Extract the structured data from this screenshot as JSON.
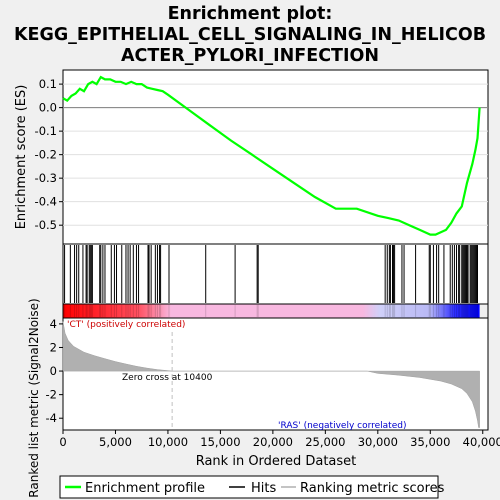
{
  "chart_data": {
    "type": "line",
    "title_lines": [
      "Enrichment plot:",
      "KEGG_EPITHELIAL_CELL_SIGNALING_IN_HELICOB",
      "ACTER_PYLORI_INFECTION"
    ],
    "es_panel": {
      "ylabel": "Enrichment score (ES)",
      "ylim": [
        -0.58,
        0.16
      ],
      "yticks": [
        0.1,
        0.0,
        -0.1,
        -0.2,
        -0.3,
        -0.4,
        -0.5
      ],
      "ytick_labels": [
        "0.1",
        "0.0",
        "-0.1",
        "-0.2",
        "-0.3",
        "-0.4",
        "-0.5"
      ],
      "curve_x": [
        0,
        400,
        800,
        1200,
        1600,
        2000,
        2400,
        2800,
        3200,
        3600,
        4000,
        4500,
        5000,
        5500,
        6000,
        6500,
        7000,
        7500,
        8000,
        8500,
        9000,
        9500,
        10000,
        12000,
        14000,
        16000,
        18000,
        20000,
        22000,
        24000,
        26000,
        28000,
        30000,
        31000,
        32000,
        33000,
        34000,
        35000,
        35500,
        36000,
        36500,
        37000,
        37500,
        38000,
        38500,
        39000,
        39300,
        39500,
        39700
      ],
      "curve_y": [
        0.04,
        0.03,
        0.05,
        0.06,
        0.08,
        0.07,
        0.1,
        0.11,
        0.1,
        0.13,
        0.12,
        0.12,
        0.11,
        0.11,
        0.1,
        0.11,
        0.1,
        0.1,
        0.085,
        0.08,
        0.075,
        0.07,
        0.055,
        -0.01,
        -0.075,
        -0.14,
        -0.2,
        -0.26,
        -0.32,
        -0.38,
        -0.43,
        -0.43,
        -0.46,
        -0.47,
        -0.48,
        -0.5,
        -0.52,
        -0.54,
        -0.54,
        -0.53,
        -0.52,
        -0.49,
        -0.45,
        -0.42,
        -0.32,
        -0.24,
        -0.18,
        -0.13,
        0.0
      ]
    },
    "hits": [
      0,
      150,
      700,
      1100,
      1300,
      1500,
      1900,
      2200,
      2300,
      2500,
      2600,
      2700,
      2800,
      3500,
      3600,
      3800,
      4000,
      4600,
      4900,
      5100,
      5600,
      6000,
      6200,
      6400,
      6700,
      7000,
      7200,
      8100,
      8200,
      8400,
      8800,
      9000,
      9200,
      9300,
      10100,
      13600,
      16400,
      18500,
      18600,
      30700,
      30900,
      31100,
      31200,
      31400,
      31500,
      31600,
      32300,
      32500,
      33600,
      34900,
      35000,
      35300,
      35600,
      35800,
      36300,
      36900,
      37100,
      37300,
      37500,
      37700,
      37800,
      38000,
      38100,
      38200,
      38300,
      38400,
      38500,
      38600,
      38800,
      38900,
      39000,
      39100,
      39200,
      39300,
      39400,
      39500
    ],
    "color_strip": {
      "low": "#ff0000",
      "mid_low": "#f5b5e0",
      "mid_high": "#c8c8f5",
      "high": "#0000ff"
    },
    "metric_panel": {
      "ylabel": "Ranked list metric (Signal2Noise)",
      "ylim": [
        -5,
        4.5
      ],
      "yticks": [
        4,
        2,
        0,
        -2,
        -4
      ],
      "ytick_labels": [
        "4",
        "2",
        "0",
        "-2",
        "-4"
      ],
      "metric_x": [
        0,
        200,
        500,
        1000,
        2000,
        3000,
        4000,
        5000,
        6000,
        7000,
        8000,
        9000,
        10000,
        10400,
        12000,
        20000,
        29000,
        30000,
        32000,
        34000,
        36000,
        37000,
        38000,
        38500,
        39000,
        39300,
        39500,
        39600,
        39700
      ],
      "metric_y": [
        4.2,
        3.2,
        2.6,
        2.1,
        1.6,
        1.3,
        1.05,
        0.8,
        0.6,
        0.4,
        0.25,
        0.12,
        0.04,
        0.0,
        0.0,
        0.0,
        0.0,
        -0.2,
        -0.35,
        -0.55,
        -0.85,
        -1.1,
        -1.5,
        -1.9,
        -2.6,
        -3.4,
        -4.2,
        -4.8,
        -4.8
      ],
      "pos_label": "'CT' (positively correlated)",
      "neg_label": "'RAS' (negatively correlated)",
      "zero_cross_label": "Zero cross at 10400",
      "zero_cross": 10400
    },
    "xlabel": "Rank in Ordered Dataset",
    "xlim": [
      0,
      40500
    ],
    "xticks": [
      0,
      5000,
      10000,
      15000,
      20000,
      25000,
      30000,
      35000,
      40000
    ],
    "xtick_labels": [
      "0",
      "5,000",
      "10,000",
      "15,000",
      "20,000",
      "25,000",
      "30,000",
      "35,000",
      "40,000"
    ],
    "n_genes": 39700,
    "legend": [
      "Enrichment profile",
      "Hits",
      "Ranking metric scores"
    ],
    "colors": {
      "es": "#00ff00",
      "hit": "#000000",
      "metric": "#b0b0b0",
      "pos_text": "#cc0000",
      "neg_text": "#0000cc",
      "zero": "#c0c0c0",
      "bg": "#f0f0f0"
    }
  }
}
